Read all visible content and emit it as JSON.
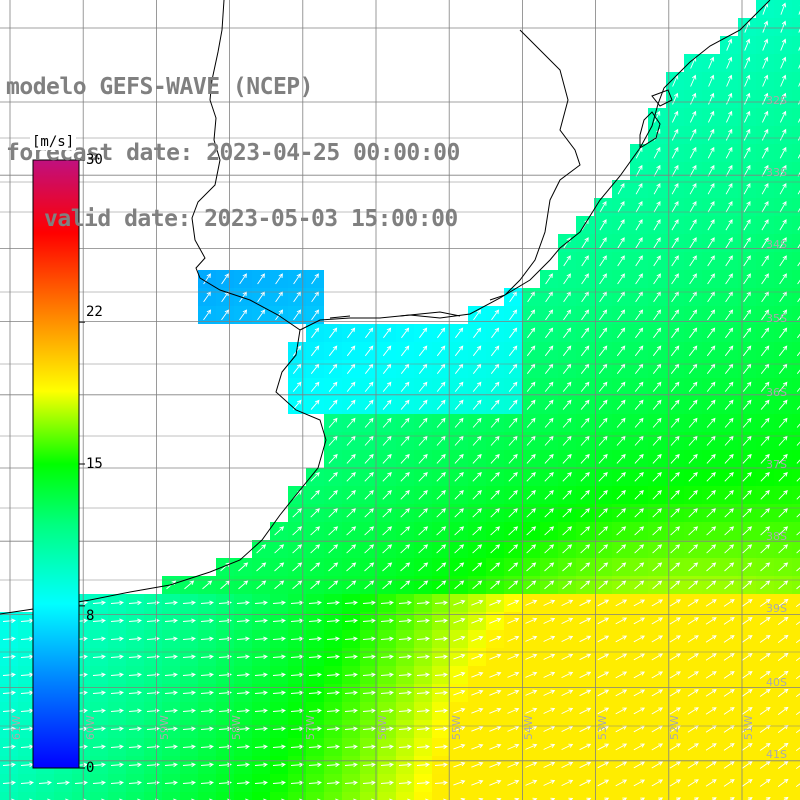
{
  "title": {
    "line1": "modelo GEFS-WAVE (NCEP)",
    "line2": "forecast date: 2023-04-25 00:00:00",
    "line3": "valid date: 2023-05-03 15:00:00"
  },
  "colorbar": {
    "unit": "[m/s]",
    "min": 0,
    "max": 30,
    "ticks": [
      "30",
      "22",
      "15",
      "8",
      "0"
    ],
    "tick_values": [
      30,
      22,
      15,
      8,
      0
    ],
    "colors": [
      "#0000ff",
      "#0080ff",
      "#00ffff",
      "#00ff00",
      "#ffff00",
      "#ff8000",
      "#ff0000",
      "#c0107f"
    ]
  },
  "axes": {
    "lat_labels": [
      "32S",
      "33S",
      "34S",
      "35S",
      "36S",
      "37S",
      "38S",
      "39S",
      "40S",
      "41S"
    ],
    "lat_values": [
      32,
      33,
      34,
      35,
      36,
      37,
      38,
      39,
      40,
      41
    ],
    "lon_labels": [
      "61W",
      "60W",
      "59W",
      "58W",
      "57W",
      "56W",
      "55W",
      "54W",
      "53W",
      "52W",
      "51W"
    ],
    "lon_values": [
      61,
      60,
      59,
      58,
      57,
      56,
      55,
      54,
      53,
      52,
      51
    ]
  },
  "colors": {
    "land": "#ffffff",
    "coastline": "#000000",
    "grid": "#808080",
    "arrow": "#ffffff",
    "title_text": "#808080"
  }
}
